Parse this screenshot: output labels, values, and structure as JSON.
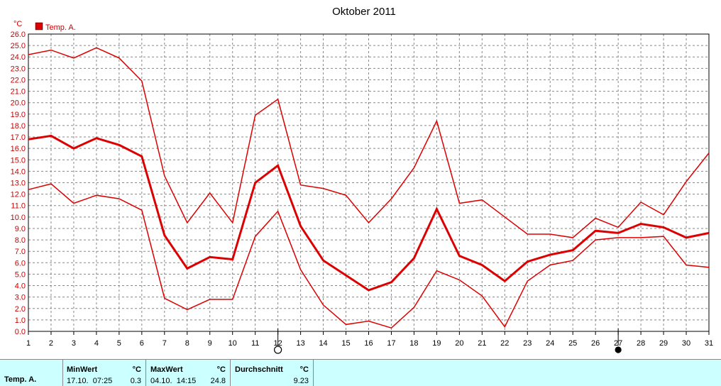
{
  "chart_data": {
    "type": "line",
    "title": "Oktober 2011",
    "ylabel": "°C",
    "ylim": [
      0,
      26
    ],
    "yticks": [
      "0.0",
      "1.0",
      "2.0",
      "3.0",
      "4.0",
      "5.0",
      "6.0",
      "7.0",
      "8.0",
      "9.0",
      "10.0",
      "11.0",
      "12.0",
      "13.0",
      "14.0",
      "15.0",
      "16.0",
      "17.0",
      "18.0",
      "19.0",
      "20.0",
      "21.0",
      "22.0",
      "23.0",
      "24.0",
      "25.0",
      "26.0"
    ],
    "x": [
      1,
      2,
      3,
      4,
      5,
      6,
      7,
      8,
      9,
      10,
      11,
      12,
      13,
      14,
      15,
      16,
      17,
      18,
      19,
      20,
      21,
      22,
      23,
      24,
      25,
      26,
      27,
      28,
      29,
      30,
      31
    ],
    "xlim": [
      1,
      31
    ],
    "grid": true,
    "legend": {
      "position": "top-left",
      "label": "Temp. A.",
      "color": "#dd0000"
    },
    "series": [
      {
        "name": "Temp. A.",
        "role": "max",
        "width": 1.5,
        "values": [
          24.2,
          24.6,
          23.9,
          24.8,
          23.9,
          21.9,
          13.6,
          9.5,
          12.1,
          9.5,
          18.9,
          20.3,
          12.8,
          12.5,
          11.9,
          9.5,
          11.6,
          14.3,
          18.4,
          11.2,
          11.5,
          10.0,
          8.5,
          8.5,
          8.2,
          9.9,
          9.1,
          11.3,
          10.2,
          13.1,
          15.6
        ]
      },
      {
        "name": "Temp. A.",
        "role": "mean",
        "width": 3,
        "values": [
          16.8,
          17.1,
          16.0,
          16.9,
          16.3,
          15.3,
          8.4,
          5.5,
          6.5,
          6.3,
          13.0,
          14.5,
          9.2,
          6.2,
          4.9,
          3.6,
          4.3,
          6.4,
          10.7,
          6.6,
          5.8,
          4.4,
          6.1,
          6.7,
          7.1,
          8.8,
          8.6,
          9.4,
          9.1,
          8.2,
          8.6
        ]
      },
      {
        "name": "Temp. A.",
        "role": "min",
        "width": 1.5,
        "values": [
          12.4,
          12.9,
          11.2,
          11.9,
          11.6,
          10.6,
          2.9,
          1.9,
          2.8,
          2.8,
          8.3,
          10.5,
          5.4,
          2.3,
          0.6,
          0.9,
          0.3,
          2.1,
          5.3,
          4.5,
          3.1,
          0.4,
          4.4,
          5.8,
          6.2,
          8.0,
          8.2,
          8.2,
          8.3,
          5.8,
          5.6
        ]
      }
    ],
    "markers": [
      {
        "day": 12,
        "symbol": "open-circle"
      },
      {
        "day": 27,
        "symbol": "filled-circle"
      }
    ]
  },
  "stats": {
    "row_label": "Temp. A.",
    "min": {
      "label": "MinWert",
      "unit": "°C",
      "when": "17.10.  07:25",
      "value": "0.3"
    },
    "max": {
      "label": "MaxWert",
      "unit": "°C",
      "when": "04.10.  14:15",
      "value": "24.8"
    },
    "avg": {
      "label": "Durchschnitt",
      "unit": "°C",
      "value": "9.23"
    }
  },
  "colors": {
    "line": "#dd0000",
    "axis_text": "#cc0000",
    "stats_bg": "#ccffff"
  }
}
